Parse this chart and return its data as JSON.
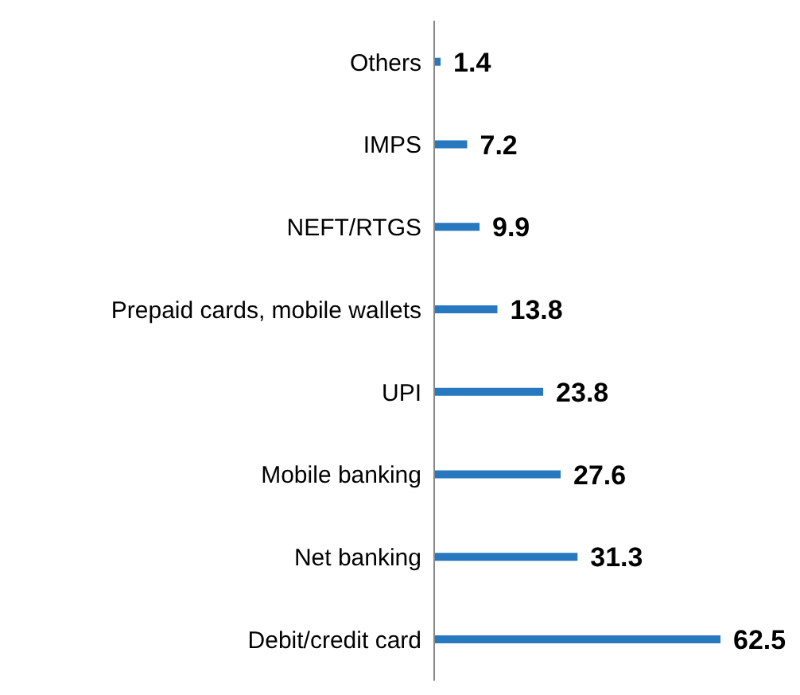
{
  "chart_data": {
    "type": "bar",
    "orientation": "horizontal",
    "categories": [
      "Others",
      "IMPS",
      "NEFT/RTGS",
      "Prepaid cards, mobile wallets",
      "UPI",
      "Mobile banking",
      "Net banking",
      "Debit/credit card"
    ],
    "values": [
      1.4,
      7.2,
      9.9,
      13.8,
      23.8,
      27.6,
      31.3,
      62.5
    ],
    "color": "#2878c0",
    "data_labels": true,
    "grid": false,
    "legend": false
  }
}
